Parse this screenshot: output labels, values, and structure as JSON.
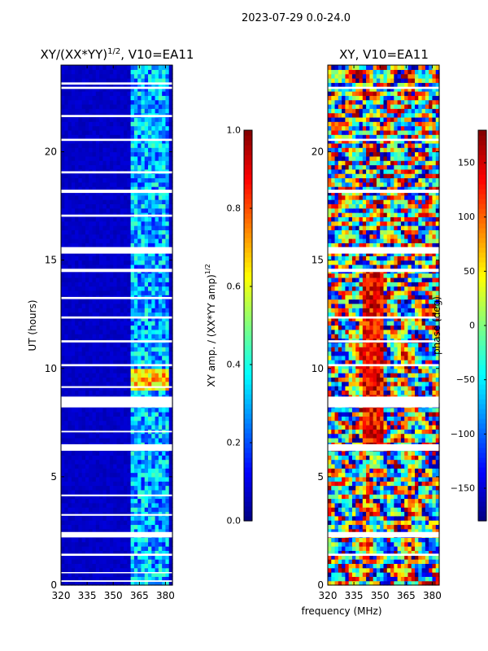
{
  "figure": {
    "suptitle": "2023-07-29 0.0-24.0",
    "shared_xlabel": "frequency (MHz)"
  },
  "chart_data": [
    {
      "type": "heatmap",
      "title": "XY/(XX*YY)^1/2, V10=EA11",
      "title_main": "XY/(XX*YY)",
      "title_exp": "1/2",
      "title_tail": ", V10=EA11",
      "xlabel": "",
      "ylabel": "UT (hours)",
      "xlim": [
        320,
        384
      ],
      "ylim": [
        0,
        24
      ],
      "xticks": [
        320,
        335,
        350,
        365,
        380
      ],
      "yticks": [
        0,
        5,
        10,
        15,
        20
      ],
      "colorbar": {
        "label": "XY amp. / (XX*YY amp)^1/2",
        "label_main": "XY amp. / (XX*YY amp)",
        "label_exp": "1/2",
        "range": [
          0.0,
          1.0
        ],
        "ticks": [
          "0.0",
          "0.2",
          "0.4",
          "0.6",
          "0.8",
          "1.0"
        ],
        "tick_values": [
          0.0,
          0.2,
          0.4,
          0.6,
          0.8,
          1.0
        ],
        "colormap": "jet"
      },
      "features": {
        "baseline_level": 0.05,
        "band_start_mhz": 361,
        "band_end_mhz": 382,
        "band_level": 0.35,
        "strong_event_hours": [
          9.0,
          9.9
        ],
        "strong_level": 0.75,
        "flagged_hours": [
          [
            0.15,
            0.22
          ],
          [
            0.55,
            0.6
          ],
          [
            1.35,
            1.45
          ],
          [
            2.2,
            2.45
          ],
          [
            3.2,
            3.28
          ],
          [
            4.1,
            4.18
          ],
          [
            6.2,
            6.5
          ],
          [
            7.05,
            7.12
          ],
          [
            8.2,
            8.7
          ],
          [
            9.1,
            9.18
          ],
          [
            10.1,
            10.2
          ],
          [
            11.2,
            11.3
          ],
          [
            12.3,
            12.4
          ],
          [
            13.2,
            13.3
          ],
          [
            14.45,
            14.6
          ],
          [
            15.3,
            15.6
          ],
          [
            17.0,
            17.1
          ],
          [
            18.1,
            18.25
          ],
          [
            19.0,
            19.1
          ],
          [
            20.5,
            20.6
          ],
          [
            21.6,
            21.7
          ],
          [
            22.9,
            23.0
          ],
          [
            23.1,
            23.2
          ]
        ]
      }
    },
    {
      "type": "heatmap",
      "title": "XY, V10=EA11",
      "xlabel": "frequency (MHz)",
      "ylabel": "",
      "xlim": [
        320,
        384
      ],
      "ylim": [
        0,
        24
      ],
      "xticks": [
        320,
        335,
        350,
        365,
        380
      ],
      "yticks": [
        0,
        5,
        10,
        15,
        20
      ],
      "colorbar": {
        "label": "phase (deg)",
        "range": [
          -180,
          180
        ],
        "ticks": [
          "−150",
          "−100",
          "−50",
          "0",
          "50",
          "100",
          "150"
        ],
        "tick_values": [
          -150,
          -100,
          -50,
          0,
          50,
          100,
          150
        ],
        "colormap": "jet"
      },
      "features": {
        "noisy_phase": true,
        "hot_band_mhz": [
          340,
          352
        ],
        "hot_band_hours": [
          6.5,
          14.5
        ],
        "flagged_hours": [
          [
            1.35,
            1.45
          ],
          [
            2.2,
            2.45
          ],
          [
            6.2,
            6.5
          ],
          [
            8.2,
            8.7
          ],
          [
            10.1,
            10.2
          ],
          [
            11.2,
            11.3
          ],
          [
            12.3,
            12.4
          ],
          [
            14.45,
            14.6
          ],
          [
            15.3,
            15.6
          ],
          [
            18.1,
            18.25
          ],
          [
            20.5,
            20.6
          ],
          [
            22.9,
            23.0
          ]
        ]
      }
    }
  ]
}
